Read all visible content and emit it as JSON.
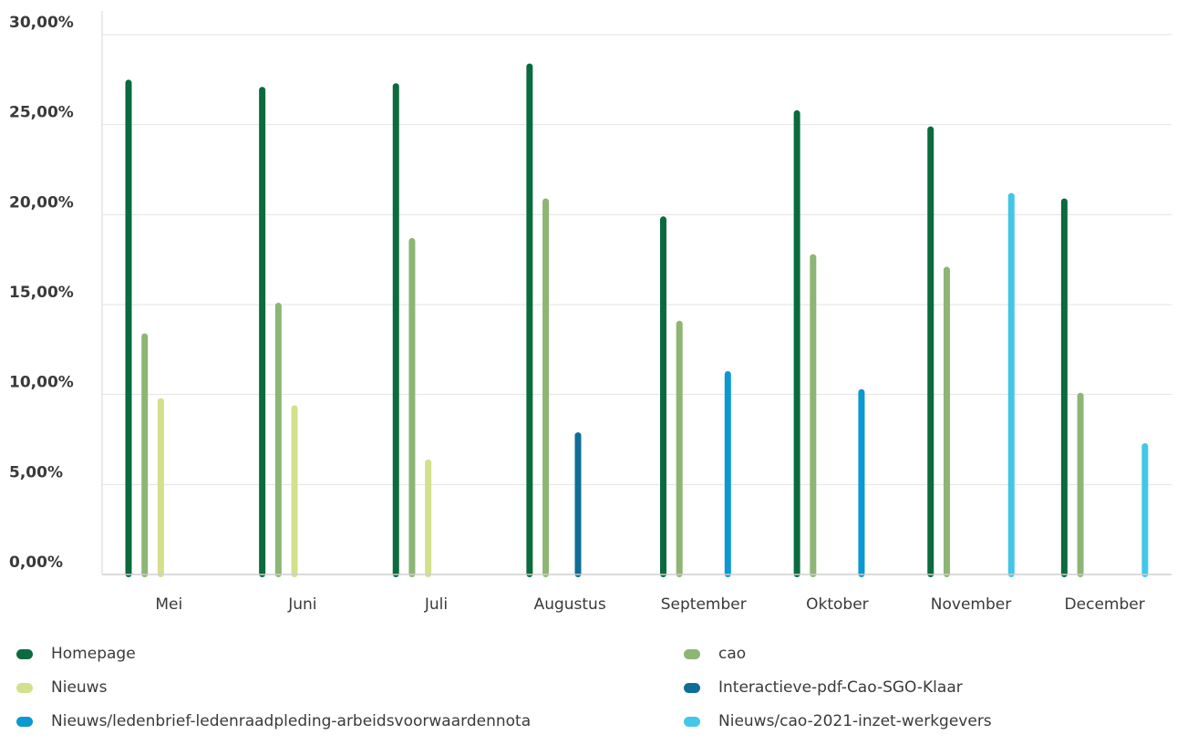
{
  "chart_data": {
    "type": "bar",
    "categories": [
      "Mei",
      "Juni",
      "Juli",
      "Augustus",
      "September",
      "Oktober",
      "November",
      "December"
    ],
    "y_ticks": [
      "0,00%",
      "5,00%",
      "10,00%",
      "15,00%",
      "20,00%",
      "25,00%",
      "30,00%"
    ],
    "ylim": [
      0,
      30
    ],
    "grid": true,
    "legend_position": "bottom",
    "series": [
      {
        "name": "Homepage",
        "color": "#0b6b3e",
        "values": [
          27.5,
          27.1,
          27.3,
          28.4,
          19.9,
          25.8,
          24.9,
          20.9
        ]
      },
      {
        "name": "cao",
        "color": "#8db574",
        "values": [
          13.4,
          15.1,
          18.7,
          20.9,
          14.1,
          17.8,
          17.1,
          10.1
        ]
      },
      {
        "name": "Nieuws",
        "color": "#d3e08c",
        "values": [
          9.8,
          9.4,
          6.4,
          null,
          null,
          null,
          null,
          null
        ]
      },
      {
        "name": "Interactieve-pdf-Cao-SGO-Klaar",
        "color": "#0f6d96",
        "values": [
          null,
          null,
          null,
          7.9,
          null,
          null,
          null,
          null
        ]
      },
      {
        "name": "Nieuws/ledenbrief-ledenraadpleding-arbeidsvoorwaardennota",
        "color": "#0a99d0",
        "values": [
          null,
          null,
          null,
          null,
          11.3,
          10.3,
          null,
          null
        ]
      },
      {
        "name": "Nieuws/cao-2021-inzet-werkgevers",
        "color": "#44c6e6",
        "values": [
          null,
          null,
          null,
          null,
          null,
          null,
          21.2,
          7.3
        ]
      }
    ]
  },
  "legend": {
    "items": [
      {
        "label": "Homepage",
        "color": "#0b6b3e"
      },
      {
        "label": "cao",
        "color": "#8db574"
      },
      {
        "label": "Nieuws",
        "color": "#d3e08c"
      },
      {
        "label": "Interactieve-pdf-Cao-SGO-Klaar",
        "color": "#0f6d96"
      },
      {
        "label": "Nieuws/ledenbrief-ledenraadpleding-arbeidsvoorwaardennota",
        "color": "#0a99d0"
      },
      {
        "label": "Nieuws/cao-2021-inzet-werkgevers",
        "color": "#44c6e6"
      }
    ]
  }
}
